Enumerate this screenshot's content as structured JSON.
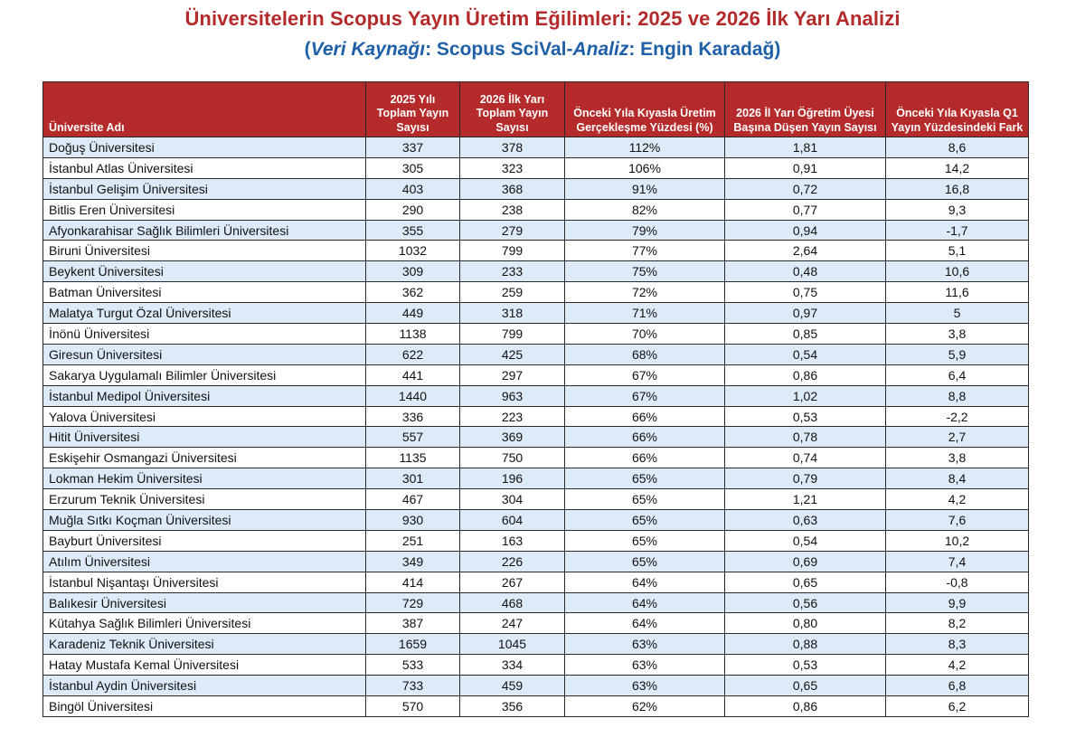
{
  "title": "Üniversitelerin Scopus Yayın Üretim Eğilimleri: 2025 ve 2026 İlk Yarı Analizi",
  "subtitle": {
    "open_paren": "(",
    "source_label": "Veri Kaynağı",
    "source_value": ": Scopus SciVal-",
    "analysis_label": "Analiz",
    "analysis_value": ": Engin Karadağ)"
  },
  "table": {
    "headers": {
      "name": "Üniversite Adı",
      "c2025": "2025 Yılı Toplam Yayın Sayısı",
      "c2026": "2026 İlk Yarı Toplam Yayın Sayısı",
      "realization": "Önceki Yıla Kıyasla Üretim Gerçekleşme Yüzdesi (%)",
      "per_faculty": "2026 İl Yarı Öğretim Üyesi Başına Düşen Yayın Sayısı",
      "q1_diff": "Önceki Yıla Kıyasla Q1 Yayın Yüzdesindeki Fark"
    },
    "rows": [
      {
        "name": "Doğuş Üniversitesi",
        "c2025": "337",
        "c2026": "378",
        "pct": "112%",
        "per": "1,81",
        "q1": "8,6"
      },
      {
        "name": "İstanbul Atlas Üniversitesi",
        "c2025": "305",
        "c2026": "323",
        "pct": "106%",
        "per": "0,91",
        "q1": "14,2"
      },
      {
        "name": "İstanbul Gelişim Üniversitesi",
        "c2025": "403",
        "c2026": "368",
        "pct": "91%",
        "per": "0,72",
        "q1": "16,8"
      },
      {
        "name": "Bitlis Eren Üniversitesi",
        "c2025": "290",
        "c2026": "238",
        "pct": "82%",
        "per": "0,77",
        "q1": "9,3"
      },
      {
        "name": "Afyonkarahisar Sağlık Bilimleri Üniversitesi",
        "c2025": "355",
        "c2026": "279",
        "pct": "79%",
        "per": "0,94",
        "q1": "-1,7"
      },
      {
        "name": "Biruni Üniversitesi",
        "c2025": "1032",
        "c2026": "799",
        "pct": "77%",
        "per": "2,64",
        "q1": "5,1"
      },
      {
        "name": "Beykent Üniversitesi",
        "c2025": "309",
        "c2026": "233",
        "pct": "75%",
        "per": "0,48",
        "q1": "10,6"
      },
      {
        "name": "Batman Üniversitesi",
        "c2025": "362",
        "c2026": "259",
        "pct": "72%",
        "per": "0,75",
        "q1": "11,6"
      },
      {
        "name": "Malatya Turgut Özal Üniversitesi",
        "c2025": "449",
        "c2026": "318",
        "pct": "71%",
        "per": "0,97",
        "q1": "5"
      },
      {
        "name": "İnönü Üniversitesi",
        "c2025": "1138",
        "c2026": "799",
        "pct": "70%",
        "per": "0,85",
        "q1": "3,8"
      },
      {
        "name": "Giresun Üniversitesi",
        "c2025": "622",
        "c2026": "425",
        "pct": "68%",
        "per": "0,54",
        "q1": "5,9"
      },
      {
        "name": "Sakarya Uygulamalı Bilimler Üniversitesi",
        "c2025": "441",
        "c2026": "297",
        "pct": "67%",
        "per": "0,86",
        "q1": "6,4"
      },
      {
        "name": "İstanbul Medipol Üniversitesi",
        "c2025": "1440",
        "c2026": "963",
        "pct": "67%",
        "per": "1,02",
        "q1": "8,8"
      },
      {
        "name": "Yalova Üniversitesi",
        "c2025": "336",
        "c2026": "223",
        "pct": "66%",
        "per": "0,53",
        "q1": "-2,2"
      },
      {
        "name": "Hitit Üniversitesi",
        "c2025": "557",
        "c2026": "369",
        "pct": "66%",
        "per": "0,78",
        "q1": "2,7"
      },
      {
        "name": "Eskişehir Osmangazi Üniversitesi",
        "c2025": "1135",
        "c2026": "750",
        "pct": "66%",
        "per": "0,74",
        "q1": "3,8"
      },
      {
        "name": "Lokman Hekim Üniversitesi",
        "c2025": "301",
        "c2026": "196",
        "pct": "65%",
        "per": "0,79",
        "q1": "8,4"
      },
      {
        "name": "Erzurum Teknik Üniversitesi",
        "c2025": "467",
        "c2026": "304",
        "pct": "65%",
        "per": "1,21",
        "q1": "4,2"
      },
      {
        "name": "Muğla Sıtkı Koçman Üniversitesi",
        "c2025": "930",
        "c2026": "604",
        "pct": "65%",
        "per": "0,63",
        "q1": "7,6"
      },
      {
        "name": "Bayburt Üniversitesi",
        "c2025": "251",
        "c2026": "163",
        "pct": "65%",
        "per": "0,54",
        "q1": "10,2"
      },
      {
        "name": "Atılım Üniversitesi",
        "c2025": "349",
        "c2026": "226",
        "pct": "65%",
        "per": "0,69",
        "q1": "7,4"
      },
      {
        "name": "İstanbul Nişantaşı Üniversitesi",
        "c2025": "414",
        "c2026": "267",
        "pct": "64%",
        "per": "0,65",
        "q1": "-0,8"
      },
      {
        "name": "Balıkesir Üniversitesi",
        "c2025": "729",
        "c2026": "468",
        "pct": "64%",
        "per": "0,56",
        "q1": "9,9"
      },
      {
        "name": "Kütahya Sağlık Bilimleri Üniversitesi",
        "c2025": "387",
        "c2026": "247",
        "pct": "64%",
        "per": "0,80",
        "q1": "8,2"
      },
      {
        "name": "Karadeniz Teknik Üniversitesi",
        "c2025": "1659",
        "c2026": "1045",
        "pct": "63%",
        "per": "0,88",
        "q1": "8,3"
      },
      {
        "name": "Hatay Mustafa Kemal Üniversitesi",
        "c2025": "533",
        "c2026": "334",
        "pct": "63%",
        "per": "0,53",
        "q1": "4,2"
      },
      {
        "name": "İstanbul Aydin Üniversitesi",
        "c2025": "733",
        "c2026": "459",
        "pct": "63%",
        "per": "0,65",
        "q1": "6,8"
      },
      {
        "name": "Bingöl Üniversitesi",
        "c2025": "570",
        "c2026": "356",
        "pct": "62%",
        "per": "0,86",
        "q1": "6,2"
      }
    ]
  },
  "colors": {
    "title": "#b42a2a",
    "subtitle": "#1f5fa8",
    "header_bg": "#b52b2b",
    "stripe": "#dcebf7"
  }
}
